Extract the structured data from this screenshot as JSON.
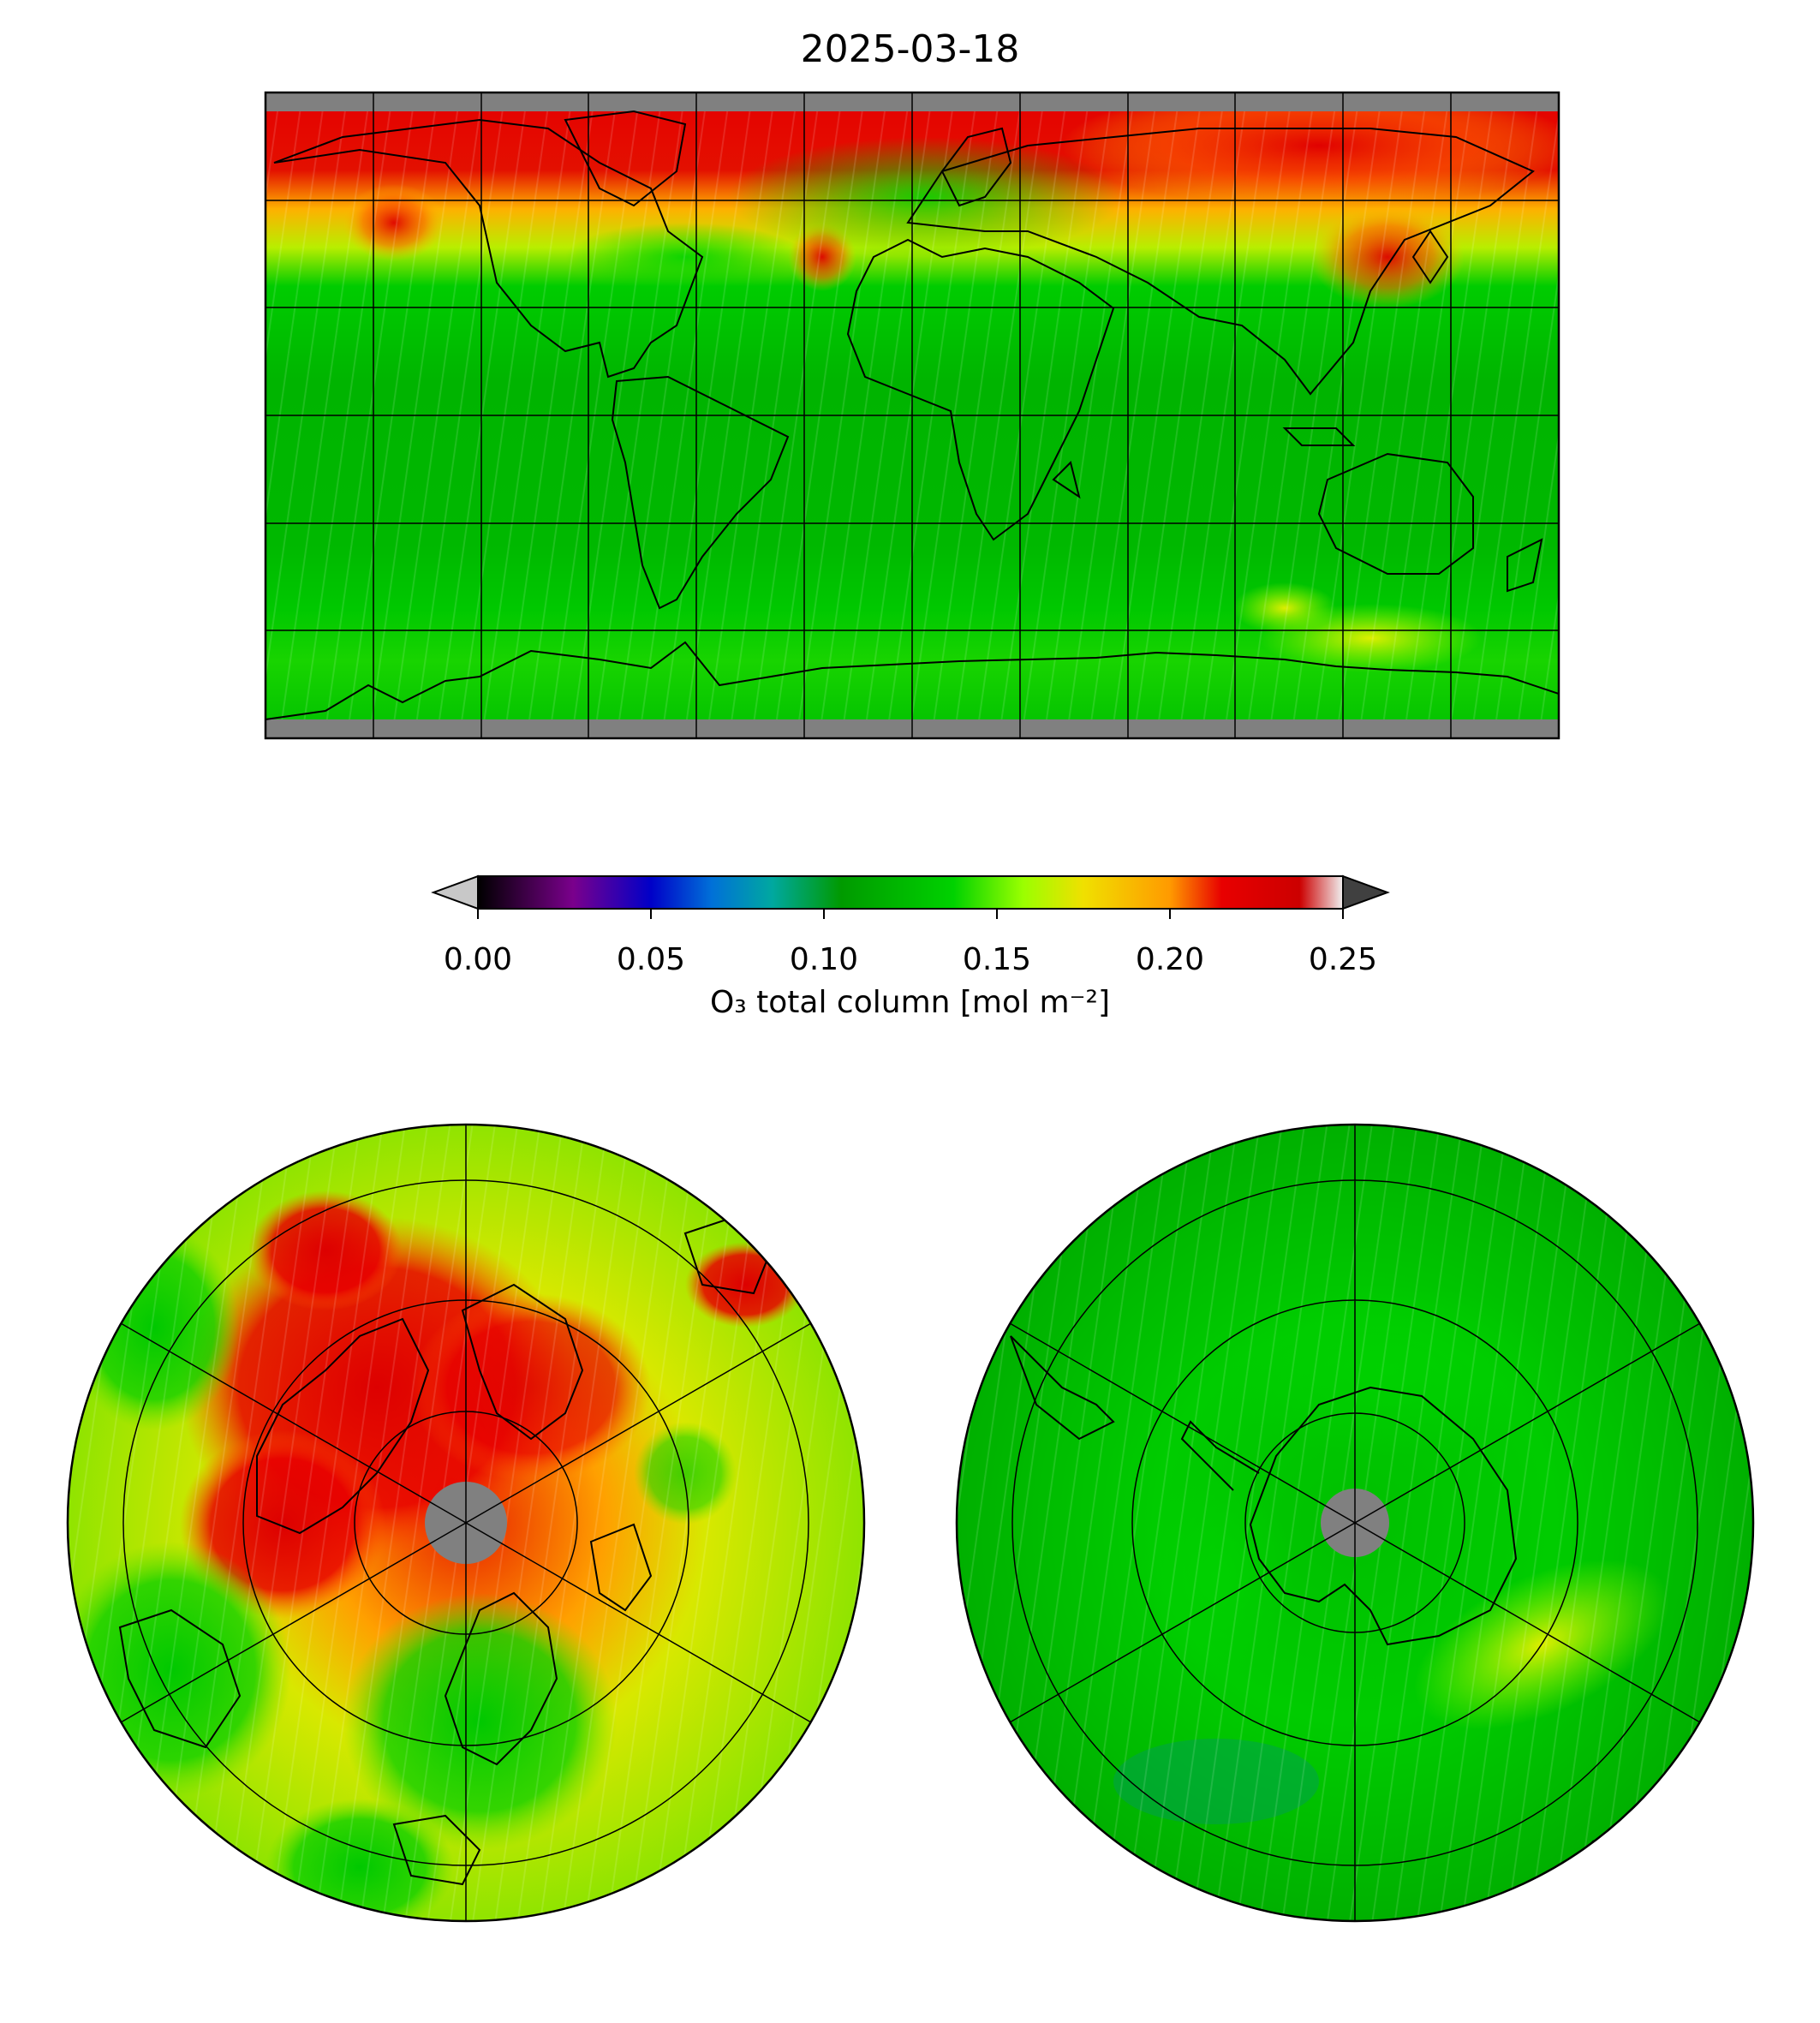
{
  "title": "2025-03-18",
  "colorbar": {
    "label": "O₃ total column [mol m⁻²]",
    "ticks": [
      "0.00",
      "0.05",
      "0.10",
      "0.15",
      "0.20",
      "0.25"
    ],
    "range": [
      0.0,
      0.25
    ],
    "extend": "both",
    "colormap_stops": [
      "#000000",
      "#7a008c",
      "#0000c8",
      "#0070d8",
      "#00a8a0",
      "#009a00",
      "#00d200",
      "#9aff00",
      "#f0e000",
      "#ff9a00",
      "#e80000",
      "#cc0000",
      "#f0f0f0"
    ],
    "under_color": "#c8c8c8",
    "over_color": "#404040",
    "missing_color": "#808080"
  },
  "panels": [
    {
      "name": "global",
      "projection": "plate-carree",
      "gridlines": true,
      "coastlines": true
    },
    {
      "name": "north-polar",
      "projection": "north-polar-stereographic",
      "gridlines": true,
      "coastlines": true
    },
    {
      "name": "south-polar",
      "projection": "south-polar-stereographic",
      "gridlines": true,
      "coastlines": true
    }
  ]
}
